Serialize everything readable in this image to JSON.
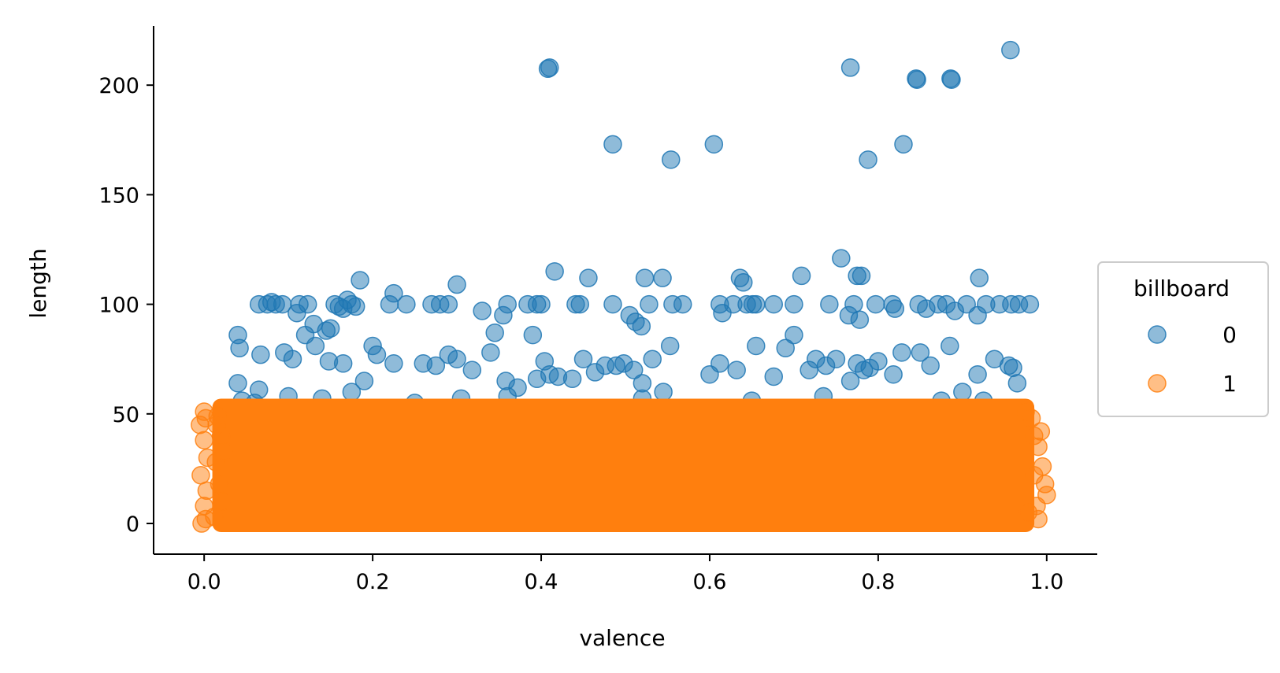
{
  "chart_data": {
    "type": "scatter",
    "title": "",
    "xlabel": "valence",
    "ylabel": "length",
    "xlim": [
      -0.06,
      1.06
    ],
    "ylim": [
      -14,
      227
    ],
    "xticks": [
      0.0,
      0.2,
      0.4,
      0.6,
      0.8,
      1.0
    ],
    "xtick_labels": [
      "0.0",
      "0.2",
      "0.4",
      "0.6",
      "0.8",
      "1.0"
    ],
    "yticks": [
      0,
      50,
      100,
      150,
      200
    ],
    "ytick_labels": [
      "0",
      "50",
      "100",
      "150",
      "200"
    ],
    "grid": false,
    "legend": {
      "title": "billboard",
      "placement": "right"
    },
    "series": [
      {
        "name": "0",
        "color": "#1f77b4",
        "opacity": 0.5,
        "points": [
          [
            0.41,
            208
          ],
          [
            0.408,
            207.5
          ],
          [
            0.767,
            208
          ],
          [
            0.957,
            216
          ],
          [
            0.845,
            203
          ],
          [
            0.846,
            202.5
          ],
          [
            0.886,
            203
          ],
          [
            0.887,
            202.5
          ],
          [
            0.485,
            173
          ],
          [
            0.554,
            166
          ],
          [
            0.605,
            173
          ],
          [
            0.788,
            166
          ],
          [
            0.83,
            173
          ],
          [
            0.756,
            121
          ],
          [
            0.416,
            115
          ],
          [
            0.709,
            113
          ],
          [
            0.636,
            112
          ],
          [
            0.64,
            110
          ],
          [
            0.523,
            112
          ],
          [
            0.544,
            112
          ],
          [
            0.456,
            112
          ],
          [
            0.92,
            112
          ],
          [
            0.185,
            111
          ],
          [
            0.775,
            113
          ],
          [
            0.78,
            113
          ],
          [
            0.3,
            109
          ],
          [
            0.644,
            100
          ],
          [
            0.651,
            100
          ],
          [
            0.655,
            100
          ],
          [
            0.615,
            96
          ],
          [
            0.065,
            100
          ],
          [
            0.075,
            100
          ],
          [
            0.085,
            100
          ],
          [
            0.093,
            100
          ],
          [
            0.113,
            100
          ],
          [
            0.123,
            100
          ],
          [
            0.155,
            100
          ],
          [
            0.16,
            99
          ],
          [
            0.165,
            98
          ],
          [
            0.175,
            100
          ],
          [
            0.18,
            99
          ],
          [
            0.17,
            102
          ],
          [
            0.225,
            105
          ],
          [
            0.22,
            100
          ],
          [
            0.24,
            100
          ],
          [
            0.27,
            100
          ],
          [
            0.28,
            100
          ],
          [
            0.29,
            100
          ],
          [
            0.36,
            100
          ],
          [
            0.384,
            100
          ],
          [
            0.395,
            100
          ],
          [
            0.4,
            100
          ],
          [
            0.441,
            100
          ],
          [
            0.446,
            100
          ],
          [
            0.485,
            100
          ],
          [
            0.528,
            100
          ],
          [
            0.556,
            100
          ],
          [
            0.568,
            100
          ],
          [
            0.612,
            100
          ],
          [
            0.628,
            100
          ],
          [
            0.676,
            100
          ],
          [
            0.7,
            100
          ],
          [
            0.742,
            100
          ],
          [
            0.771,
            100
          ],
          [
            0.797,
            100
          ],
          [
            0.817,
            100
          ],
          [
            0.848,
            100
          ],
          [
            0.857,
            98
          ],
          [
            0.871,
            100
          ],
          [
            0.881,
            100
          ],
          [
            0.891,
            97
          ],
          [
            0.905,
            100
          ],
          [
            0.928,
            100
          ],
          [
            0.944,
            100
          ],
          [
            0.958,
            100
          ],
          [
            0.967,
            100
          ],
          [
            0.98,
            100
          ],
          [
            0.08,
            101
          ],
          [
            0.11,
            96
          ],
          [
            0.13,
            91
          ],
          [
            0.145,
            88
          ],
          [
            0.15,
            89
          ],
          [
            0.33,
            97
          ],
          [
            0.355,
            95
          ],
          [
            0.39,
            86
          ],
          [
            0.505,
            95
          ],
          [
            0.512,
            92
          ],
          [
            0.519,
            90
          ],
          [
            0.765,
            95
          ],
          [
            0.778,
            93
          ],
          [
            0.82,
            98
          ],
          [
            0.918,
            95
          ],
          [
            0.04,
            86
          ],
          [
            0.042,
            80
          ],
          [
            0.04,
            64
          ],
          [
            0.065,
            61
          ],
          [
            0.067,
            77
          ],
          [
            0.095,
            78
          ],
          [
            0.105,
            75
          ],
          [
            0.12,
            86
          ],
          [
            0.132,
            81
          ],
          [
            0.148,
            74
          ],
          [
            0.165,
            73
          ],
          [
            0.175,
            60
          ],
          [
            0.19,
            65
          ],
          [
            0.2,
            81
          ],
          [
            0.205,
            77
          ],
          [
            0.225,
            73
          ],
          [
            0.26,
            73
          ],
          [
            0.275,
            72
          ],
          [
            0.29,
            77
          ],
          [
            0.3,
            75
          ],
          [
            0.318,
            70
          ],
          [
            0.34,
            78
          ],
          [
            0.345,
            87
          ],
          [
            0.358,
            65
          ],
          [
            0.372,
            62
          ],
          [
            0.395,
            66
          ],
          [
            0.404,
            74
          ],
          [
            0.41,
            68
          ],
          [
            0.42,
            67
          ],
          [
            0.437,
            66
          ],
          [
            0.45,
            75
          ],
          [
            0.464,
            69
          ],
          [
            0.476,
            72
          ],
          [
            0.489,
            72
          ],
          [
            0.498,
            73
          ],
          [
            0.51,
            70
          ],
          [
            0.52,
            64
          ],
          [
            0.532,
            75
          ],
          [
            0.545,
            60
          ],
          [
            0.553,
            81
          ],
          [
            0.6,
            68
          ],
          [
            0.612,
            73
          ],
          [
            0.632,
            70
          ],
          [
            0.655,
            81
          ],
          [
            0.676,
            67
          ],
          [
            0.69,
            80
          ],
          [
            0.7,
            86
          ],
          [
            0.718,
            70
          ],
          [
            0.726,
            75
          ],
          [
            0.738,
            72
          ],
          [
            0.75,
            75
          ],
          [
            0.767,
            65
          ],
          [
            0.775,
            73
          ],
          [
            0.783,
            70
          ],
          [
            0.79,
            71
          ],
          [
            0.8,
            74
          ],
          [
            0.818,
            68
          ],
          [
            0.828,
            78
          ],
          [
            0.85,
            78
          ],
          [
            0.862,
            72
          ],
          [
            0.885,
            81
          ],
          [
            0.9,
            60
          ],
          [
            0.918,
            68
          ],
          [
            0.938,
            75
          ],
          [
            0.955,
            72
          ],
          [
            0.96,
            71
          ],
          [
            0.965,
            64
          ],
          [
            0.045,
            56
          ],
          [
            0.06,
            55
          ],
          [
            0.1,
            58
          ],
          [
            0.14,
            57
          ],
          [
            0.25,
            55
          ],
          [
            0.305,
            57
          ],
          [
            0.36,
            58
          ],
          [
            0.52,
            57
          ],
          [
            0.65,
            56
          ],
          [
            0.735,
            58
          ],
          [
            0.875,
            56
          ],
          [
            0.925,
            56
          ]
        ]
      },
      {
        "name": "1",
        "color": "#ff7f0e",
        "opacity": 0.5,
        "points": [
          [
            0.0,
            51
          ],
          [
            0.002,
            48
          ],
          [
            -0.005,
            45
          ],
          [
            0.0,
            38
          ],
          [
            0.004,
            30
          ],
          [
            -0.004,
            22
          ],
          [
            0.003,
            15
          ],
          [
            0.0,
            8
          ],
          [
            0.002,
            2
          ],
          [
            -0.003,
            0
          ],
          [
            0.014,
            28
          ],
          [
            0.012,
            3
          ],
          [
            0.016,
            49
          ],
          [
            0.018,
            18
          ],
          [
            0.02,
            40
          ],
          [
            0.022,
            10
          ],
          [
            0.024,
            33
          ],
          [
            0.015,
            45
          ],
          [
            0.982,
            48
          ],
          [
            0.985,
            40
          ],
          [
            0.99,
            35
          ],
          [
            0.995,
            26
          ],
          [
            1.0,
            13
          ],
          [
            0.99,
            2
          ],
          [
            0.993,
            42
          ],
          [
            0.985,
            22
          ],
          [
            0.988,
            8
          ],
          [
            0.975,
            51
          ],
          [
            0.978,
            5
          ],
          [
            0.998,
            18
          ]
        ]
      }
    ],
    "bands": [
      {
        "series": "1",
        "x_range": [
          0.02,
          0.975
        ],
        "y_range": [
          0,
          53
        ]
      }
    ]
  }
}
